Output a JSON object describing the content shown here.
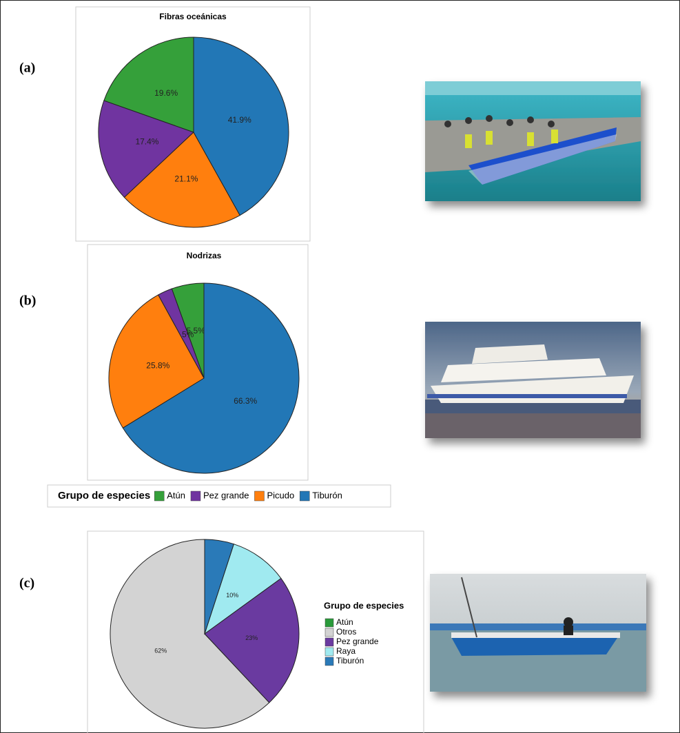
{
  "chart_data": [
    {
      "type": "pie",
      "panel_label": "(a)",
      "title": "Fibras oceánicas",
      "values": [
        19.6,
        17.4,
        21.1,
        41.9
      ],
      "value_labels": [
        "19.6%",
        "17.4%",
        "21.1%",
        "41.9%"
      ],
      "colors": [
        "#35a03a",
        "#7034a0",
        "#ff7f0e",
        "#2277b6"
      ]
    },
    {
      "type": "pie",
      "panel_label": "(b)",
      "title": "Nodrizas",
      "categories": [
        "Atún",
        "Pez grande",
        "Picudo",
        "Tiburón"
      ],
      "values": [
        5.5,
        2.5,
        25.8,
        66.3
      ],
      "value_labels": [
        "5.5%",
        "2.5%",
        "25.8%",
        "66.3%"
      ],
      "colors": [
        "#35a03a",
        "#7034a0",
        "#ff7f0e",
        "#2277b6"
      ],
      "legend_title": "Grupo de especies",
      "legend": "bottom"
    },
    {
      "type": "pie",
      "panel_label": "(c)",
      "categories": [
        "Atún",
        "Otros",
        "Pez grande",
        "Raya",
        "Tiburón"
      ],
      "values": [
        0,
        62,
        23,
        10,
        5
      ],
      "value_labels": [
        null,
        "62%",
        "23%",
        "10%",
        null
      ],
      "colors": [
        "#2a9a3a",
        "#d3d3d3",
        "#6a3aa0",
        "#a0eaf0",
        "#2a7ab8"
      ],
      "legend_title": "Grupo de especies",
      "legend": "right"
    }
  ]
}
